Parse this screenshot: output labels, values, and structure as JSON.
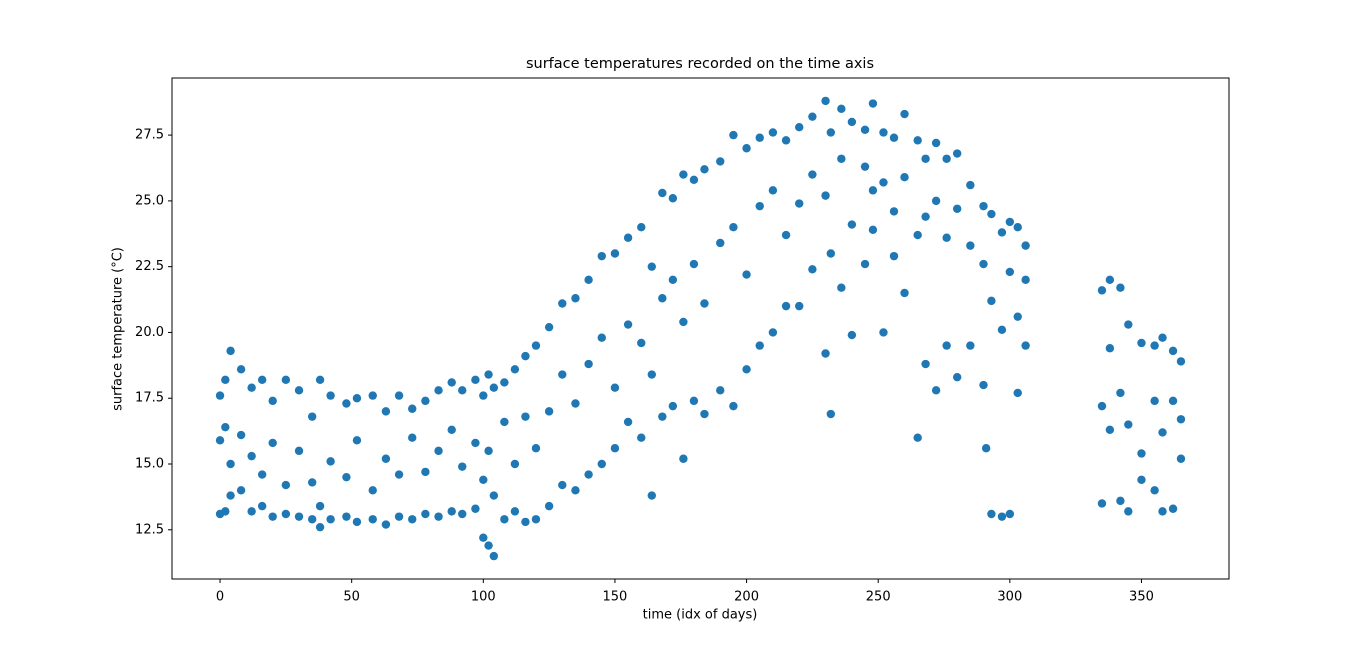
{
  "chart_data": {
    "type": "scatter",
    "title": "surface temperatures recorded on the time axis",
    "x_label": "time (idx of days)",
    "y_label": "surface temperature (°C)",
    "color": "#1f77b4",
    "xlim": [
      -18.25,
      383.25
    ],
    "ylim": [
      10.63,
      29.67
    ],
    "xticks": [
      0,
      50,
      100,
      150,
      200,
      250,
      300,
      350
    ],
    "yticks": [
      12.5,
      {
        "value": 15,
        "label": "15.0"
      },
      17.5,
      {
        "value": 20,
        "label": "20.0"
      },
      22.5,
      {
        "value": 25,
        "label": "25.0"
      },
      27.5
    ],
    "x": [
      0,
      0,
      0,
      2,
      2,
      2,
      4,
      4,
      4,
      8,
      8,
      8,
      12,
      12,
      12,
      16,
      16,
      16,
      20,
      20,
      20,
      25,
      25,
      25,
      30,
      30,
      30,
      35,
      35,
      35,
      38,
      38,
      38,
      42,
      42,
      42,
      48,
      48,
      48,
      52,
      52,
      52,
      58,
      58,
      58,
      63,
      63,
      63,
      68,
      68,
      68,
      73,
      73,
      73,
      78,
      78,
      78,
      83,
      83,
      83,
      88,
      88,
      88,
      92,
      92,
      92,
      97,
      97,
      97,
      100,
      100,
      100,
      102,
      102,
      102,
      104,
      104,
      104,
      108,
      108,
      108,
      112,
      112,
      112,
      116,
      116,
      116,
      120,
      120,
      120,
      125,
      125,
      125,
      130,
      130,
      130,
      135,
      135,
      135,
      140,
      140,
      140,
      145,
      145,
      145,
      150,
      150,
      150,
      155,
      155,
      155,
      160,
      160,
      160,
      164,
      164,
      164,
      168,
      168,
      168,
      172,
      172,
      172,
      176,
      176,
      176,
      180,
      180,
      180,
      184,
      184,
      184,
      190,
      190,
      190,
      195,
      195,
      195,
      200,
      200,
      200,
      205,
      205,
      205,
      210,
      210,
      210,
      215,
      215,
      215,
      220,
      220,
      220,
      225,
      225,
      225,
      230,
      230,
      230,
      232,
      232,
      232,
      236,
      236,
      236,
      240,
      240,
      240,
      245,
      245,
      245,
      248,
      248,
      248,
      252,
      252,
      252,
      256,
      256,
      256,
      260,
      260,
      260,
      265,
      265,
      265,
      268,
      268,
      268,
      272,
      272,
      272,
      276,
      276,
      276,
      280,
      280,
      280,
      285,
      285,
      285,
      290,
      290,
      290,
      291,
      293,
      293,
      293,
      297,
      297,
      297,
      300,
      300,
      300,
      303,
      303,
      303,
      306,
      306,
      306,
      335,
      335,
      335,
      338,
      338,
      338,
      342,
      342,
      342,
      345,
      345,
      345,
      350,
      350,
      350,
      355,
      355,
      355,
      358,
      358,
      358,
      362,
      362,
      362,
      365,
      365,
      365
    ],
    "values": [
      15.9,
      17.6,
      13.1,
      18.2,
      16.4,
      13.2,
      19.3,
      15.0,
      13.8,
      18.6,
      16.1,
      14.0,
      17.9,
      15.3,
      13.2,
      18.2,
      14.6,
      13.4,
      17.4,
      15.8,
      13.0,
      18.2,
      14.2,
      13.1,
      17.8,
      15.5,
      13.0,
      16.8,
      14.3,
      12.9,
      18.2,
      13.4,
      12.6,
      17.6,
      15.1,
      12.9,
      17.3,
      14.5,
      13.0,
      17.5,
      15.9,
      12.8,
      17.6,
      14.0,
      12.9,
      17.0,
      15.2,
      12.7,
      17.6,
      14.6,
      13.0,
      17.1,
      16.0,
      12.9,
      17.4,
      14.7,
      13.1,
      17.8,
      15.5,
      13.0,
      18.1,
      16.3,
      13.2,
      17.8,
      14.9,
      13.1,
      18.2,
      15.8,
      13.3,
      17.6,
      14.4,
      12.2,
      18.4,
      15.5,
      11.9,
      17.9,
      13.8,
      11.5,
      18.1,
      16.6,
      12.9,
      18.6,
      15.0,
      13.2,
      19.1,
      16.8,
      12.8,
      19.5,
      15.6,
      12.9,
      20.2,
      17.0,
      13.4,
      21.1,
      18.4,
      14.2,
      21.3,
      17.3,
      14.0,
      22.0,
      18.8,
      14.6,
      22.9,
      19.8,
      15.0,
      23.0,
      17.9,
      15.6,
      23.6,
      20.3,
      16.6,
      24.0,
      19.6,
      16.0,
      22.5,
      18.4,
      13.8,
      25.3,
      21.3,
      16.8,
      25.1,
      22.0,
      17.2,
      26.0,
      20.4,
      15.2,
      25.8,
      22.6,
      17.4,
      26.2,
      21.1,
      16.9,
      26.5,
      23.4,
      17.8,
      27.5,
      24.0,
      17.2,
      27.0,
      22.2,
      18.6,
      27.4,
      24.8,
      19.5,
      27.6,
      25.4,
      20.0,
      27.3,
      23.7,
      21.0,
      27.8,
      24.9,
      21.0,
      28.2,
      26.0,
      22.4,
      28.8,
      25.2,
      19.2,
      27.6,
      23.0,
      16.9,
      28.5,
      26.6,
      21.7,
      28.0,
      24.1,
      19.9,
      27.7,
      26.3,
      22.6,
      28.7,
      25.4,
      23.9,
      27.6,
      25.7,
      20.0,
      27.4,
      24.6,
      22.9,
      28.3,
      25.9,
      21.5,
      27.3,
      23.7,
      16.0,
      26.6,
      24.4,
      18.8,
      27.2,
      25.0,
      17.8,
      26.6,
      23.6,
      19.5,
      26.8,
      24.7,
      18.3,
      25.6,
      23.3,
      19.5,
      24.8,
      22.6,
      18.0,
      15.6,
      24.5,
      21.2,
      13.1,
      23.8,
      20.1,
      13.0,
      24.2,
      22.3,
      13.1,
      24.0,
      20.6,
      17.7,
      23.3,
      22.0,
      19.5,
      21.6,
      17.2,
      13.5,
      22.0,
      19.4,
      16.3,
      21.7,
      17.7,
      13.6,
      20.3,
      16.5,
      13.2,
      19.6,
      15.4,
      14.4,
      19.5,
      17.4,
      14.0,
      19.8,
      16.2,
      13.2,
      19.3,
      17.4,
      13.3,
      18.9,
      15.2,
      16.7
    ]
  }
}
